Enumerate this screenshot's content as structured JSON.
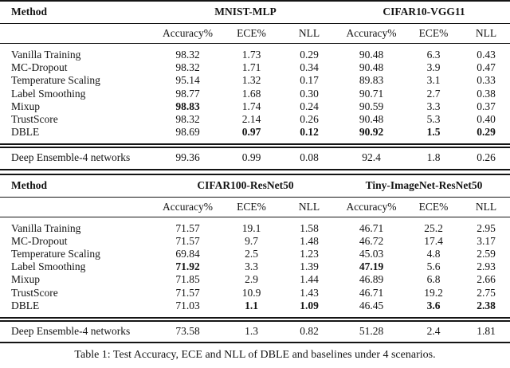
{
  "caption": "Table 1: Test Accuracy, ECE and NLL of DBLE and baselines under 4 scenarios.",
  "tables": [
    {
      "method_header": "Method",
      "groups": [
        "MNIST-MLP",
        "CIFAR10-VGG11"
      ],
      "subheaders": [
        "Accuracy%",
        "ECE%",
        "NLL",
        "Accuracy%",
        "ECE%",
        "NLL"
      ],
      "rows": [
        {
          "method": "Vanilla Training",
          "values": [
            "98.32",
            "1.73",
            "0.29",
            "90.48",
            "6.3",
            "0.43"
          ],
          "bold": [
            false,
            false,
            false,
            false,
            false,
            false
          ]
        },
        {
          "method": "MC-Dropout",
          "values": [
            "98.32",
            "1.71",
            "0.34",
            "90.48",
            "3.9",
            "0.47"
          ],
          "bold": [
            false,
            false,
            false,
            false,
            false,
            false
          ]
        },
        {
          "method": "Temperature Scaling",
          "values": [
            "95.14",
            "1.32",
            "0.17",
            "89.83",
            "3.1",
            "0.33"
          ],
          "bold": [
            false,
            false,
            false,
            false,
            false,
            false
          ]
        },
        {
          "method": "Label Smoothing",
          "values": [
            "98.77",
            "1.68",
            "0.30",
            "90.71",
            "2.7",
            "0.38"
          ],
          "bold": [
            false,
            false,
            false,
            false,
            false,
            false
          ]
        },
        {
          "method": "Mixup",
          "values": [
            "98.83",
            "1.74",
            "0.24",
            "90.59",
            "3.3",
            "0.37"
          ],
          "bold": [
            true,
            false,
            false,
            false,
            false,
            false
          ]
        },
        {
          "method": "TrustScore",
          "values": [
            "98.32",
            "2.14",
            "0.26",
            "90.48",
            "5.3",
            "0.40"
          ],
          "bold": [
            false,
            false,
            false,
            false,
            false,
            false
          ]
        },
        {
          "method": "DBLE",
          "values": [
            "98.69",
            "0.97",
            "0.12",
            "90.92",
            "1.5",
            "0.29"
          ],
          "bold": [
            false,
            true,
            true,
            true,
            true,
            true
          ]
        }
      ],
      "ensemble": {
        "method": "Deep Ensemble-4 networks",
        "values": [
          "99.36",
          "0.99",
          "0.08",
          "92.4",
          "1.8",
          "0.26"
        ],
        "bold": [
          false,
          false,
          false,
          false,
          false,
          false
        ]
      }
    },
    {
      "method_header": "Method",
      "groups": [
        "CIFAR100-ResNet50",
        "Tiny-ImageNet-ResNet50"
      ],
      "subheaders": [
        "Accuracy%",
        "ECE%",
        "NLL",
        "Accuracy%",
        "ECE%",
        "NLL"
      ],
      "rows": [
        {
          "method": "Vanilla Training",
          "values": [
            "71.57",
            "19.1",
            "1.58",
            "46.71",
            "25.2",
            "2.95"
          ],
          "bold": [
            false,
            false,
            false,
            false,
            false,
            false
          ]
        },
        {
          "method": "MC-Dropout",
          "values": [
            "71.57",
            "9.7",
            "1.48",
            "46.72",
            "17.4",
            "3.17"
          ],
          "bold": [
            false,
            false,
            false,
            false,
            false,
            false
          ]
        },
        {
          "method": "Temperature Scaling",
          "values": [
            "69.84",
            "2.5",
            "1.23",
            "45.03",
            "4.8",
            "2.59"
          ],
          "bold": [
            false,
            false,
            false,
            false,
            false,
            false
          ]
        },
        {
          "method": "Label Smoothing",
          "values": [
            "71.92",
            "3.3",
            "1.39",
            "47.19",
            "5.6",
            "2.93"
          ],
          "bold": [
            true,
            false,
            false,
            true,
            false,
            false
          ]
        },
        {
          "method": "Mixup",
          "values": [
            "71.85",
            "2.9",
            "1.44",
            "46.89",
            "6.8",
            "2.66"
          ],
          "bold": [
            false,
            false,
            false,
            false,
            false,
            false
          ]
        },
        {
          "method": "TrustScore",
          "values": [
            "71.57",
            "10.9",
            "1.43",
            "46.71",
            "19.2",
            "2.75"
          ],
          "bold": [
            false,
            false,
            false,
            false,
            false,
            false
          ]
        },
        {
          "method": "DBLE",
          "values": [
            "71.03",
            "1.1",
            "1.09",
            "46.45",
            "3.6",
            "2.38"
          ],
          "bold": [
            false,
            true,
            true,
            false,
            true,
            true
          ]
        }
      ],
      "ensemble": {
        "method": "Deep Ensemble-4 networks",
        "values": [
          "73.58",
          "1.3",
          "0.82",
          "51.28",
          "2.4",
          "1.81"
        ],
        "bold": [
          false,
          false,
          false,
          false,
          false,
          false
        ]
      }
    }
  ]
}
